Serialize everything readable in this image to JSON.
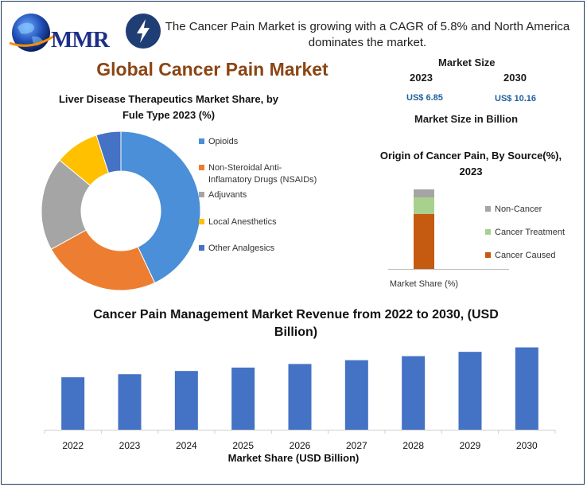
{
  "header": {
    "logo_text": "MMR",
    "headline": "The Cancer Pain Market is growing with a CAGR of 5.8% and North America dominates the market."
  },
  "main_title": "Global Cancer Pain Market",
  "market_size": {
    "label": "Market Size",
    "years": [
      "2023",
      "2030"
    ],
    "values": [
      "US$ 6.85",
      "US$ 10.16"
    ],
    "footer": "Market Size in Billion"
  },
  "colors": {
    "opioids": "#4a8fd8",
    "nsaids": "#ed7d31",
    "adjuvants": "#a5a5a5",
    "local_anesthetics": "#ffc000",
    "other_analgesics": "#4472c4",
    "bar": "#4472c4",
    "non_cancer": "#a5a5a5",
    "cancer_treatment": "#a9d18e",
    "cancer_caused": "#c55a11"
  },
  "chart_data": [
    {
      "type": "pie",
      "donut": true,
      "title": "Liver Disease Therapeutics Market Share, by Fule Type 2023 (%)",
      "labels": [
        "Opioids",
        "Non-Steroidal Anti-Inflamatory Drugs (NSAIDs)",
        "Adjuvants",
        "Local Anesthetics",
        "Other Analgesics"
      ],
      "legend_lines": [
        [
          "Opioids"
        ],
        [
          "Non-Steroidal Anti-",
          "Inflamatory Drugs (NSAIDs)"
        ],
        [
          "Adjuvants"
        ],
        [
          "Local Anesthetics"
        ],
        [
          "Other Analgesics"
        ]
      ],
      "values": [
        43,
        24,
        19,
        9,
        5
      ],
      "legend": "right"
    },
    {
      "type": "bar",
      "stacked": true,
      "title": "Origin of Cancer Pain, By Source(%), 2023",
      "categories": [
        "Market Share (%)"
      ],
      "series": [
        {
          "name": "Cancer Caused",
          "values": [
            69
          ]
        },
        {
          "name": "Cancer Treatment",
          "values": [
            21
          ]
        },
        {
          "name": "Non-Cancer",
          "values": [
            10
          ]
        }
      ],
      "legend_order": [
        "Non-Cancer",
        "Cancer Treatment",
        "Cancer Caused"
      ],
      "legend": "right",
      "ylim": [
        0,
        100
      ]
    },
    {
      "type": "bar",
      "title": "Cancer Pain Management Market Revenue from 2022 to 2030, (USD Billion)",
      "categories": [
        "2022",
        "2023",
        "2024",
        "2025",
        "2026",
        "2027",
        "2028",
        "2029",
        "2030"
      ],
      "values": [
        6.47,
        6.85,
        7.25,
        7.67,
        8.11,
        8.58,
        9.08,
        9.61,
        10.16
      ],
      "xlabel": "Market Share (USD Billion)",
      "ylabel": "",
      "ylim": [
        0,
        11
      ]
    }
  ]
}
